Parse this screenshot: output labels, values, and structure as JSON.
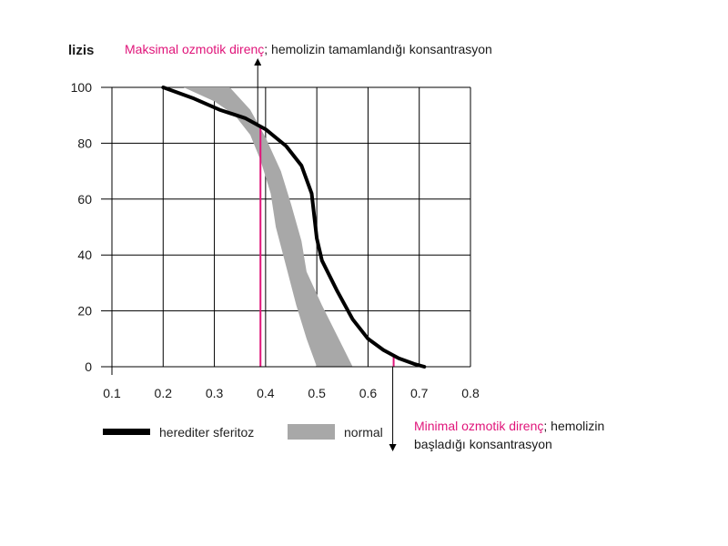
{
  "chart_data": {
    "type": "line",
    "ylabel": "lizis",
    "xlim": [
      0.1,
      0.8
    ],
    "ylim": [
      0,
      100
    ],
    "x_ticks": [
      "0.1",
      "0.2",
      "0.3",
      "0.4",
      "0.5",
      "0.6",
      "0.7",
      "0.8"
    ],
    "y_ticks": [
      "0",
      "20",
      "40",
      "60",
      "80",
      "100"
    ],
    "grid": true,
    "series": [
      {
        "name": "herediter sferitoz",
        "color": "#000000",
        "points": [
          [
            0.2,
            100
          ],
          [
            0.26,
            96
          ],
          [
            0.31,
            92
          ],
          [
            0.36,
            89
          ],
          [
            0.4,
            85
          ],
          [
            0.44,
            79
          ],
          [
            0.47,
            72
          ],
          [
            0.49,
            62
          ],
          [
            0.5,
            46
          ],
          [
            0.51,
            38
          ],
          [
            0.54,
            27
          ],
          [
            0.57,
            17
          ],
          [
            0.6,
            10
          ],
          [
            0.63,
            6
          ],
          [
            0.66,
            3
          ],
          [
            0.69,
            1
          ],
          [
            0.71,
            0
          ]
        ]
      },
      {
        "name": "normal",
        "color": "#a8a8a8",
        "band_upper": [
          [
            0.24,
            100
          ],
          [
            0.33,
            100
          ],
          [
            0.37,
            92
          ],
          [
            0.4,
            82
          ],
          [
            0.43,
            70
          ],
          [
            0.45,
            58
          ],
          [
            0.47,
            45
          ],
          [
            0.48,
            34
          ],
          [
            0.51,
            22
          ],
          [
            0.54,
            11
          ],
          [
            0.57,
            0
          ]
        ],
        "band_lower": [
          [
            0.5,
            0
          ],
          [
            0.48,
            10
          ],
          [
            0.46,
            22
          ],
          [
            0.44,
            36
          ],
          [
            0.42,
            50
          ],
          [
            0.41,
            62
          ],
          [
            0.39,
            74
          ],
          [
            0.37,
            83
          ],
          [
            0.34,
            90
          ],
          [
            0.3,
            95
          ],
          [
            0.24,
            100
          ]
        ]
      }
    ],
    "markers": [
      {
        "x": 0.39,
        "y": 86,
        "color": "#e0157a"
      },
      {
        "x": 0.65,
        "y": 4,
        "color": "#e0157a"
      }
    ],
    "legend": {
      "position": "bottom-left",
      "items": [
        "herediter sferitoz",
        "normal"
      ]
    }
  },
  "annotations": {
    "max": {
      "highlight": "Maksimal ozmotik direnç",
      "text": "; hemolizin tamamlandığı  konsantrasyon"
    },
    "min": {
      "highlight": "Minimal ozmotik direnç",
      "text_line1": "; hemolizin",
      "text_line2": "başladığı konsantrasyon"
    }
  }
}
